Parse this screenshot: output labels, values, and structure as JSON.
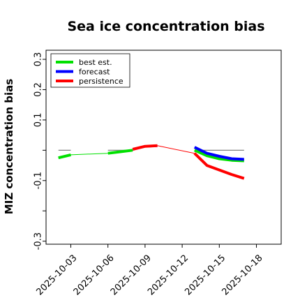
{
  "chart_data": {
    "type": "line",
    "title": "Sea ice concentration bias",
    "xlabel": "",
    "ylabel": "MIZ concentration bias",
    "ylim": [
      -0.31,
      0.33
    ],
    "xlim": [
      "2025-10-01",
      "2025-10-20"
    ],
    "x_ticks": [
      "2025-10-03",
      "2025-10-06",
      "2025-10-09",
      "2025-10-12",
      "2025-10-15",
      "2025-10-18"
    ],
    "highlight_tick": "2025-10-09",
    "highlight_color": "#2e8b2e",
    "y_ticks": [
      {
        "value": 0.3,
        "label": "0.3"
      },
      {
        "value": 0.2,
        "label": "0.2"
      },
      {
        "value": 0.1,
        "label": "0.1"
      },
      {
        "value": 0.0,
        "label": ""
      },
      {
        "value": -0.1,
        "label": "-0.1"
      },
      {
        "value": -0.2,
        "label": ""
      },
      {
        "value": -0.3,
        "label": "-0.3"
      }
    ],
    "zero_line": {
      "color": "#808080",
      "segments": [
        [
          "2025-10-02",
          "2025-10-03"
        ],
        [
          "2025-10-06",
          "2025-10-08"
        ],
        [
          "2025-10-13",
          "2025-10-17"
        ]
      ]
    },
    "legend": {
      "position": "top-left",
      "entries": [
        {
          "label": "best est.",
          "color": "#00e000"
        },
        {
          "label": "forecast",
          "color": "#0000ff"
        },
        {
          "label": "persistence",
          "color": "#ff0000"
        }
      ]
    },
    "series": [
      {
        "name": "best est.",
        "color": "#00e000",
        "segments": [
          {
            "x": [
              "2025-10-02",
              "2025-10-03",
              "2025-10-06",
              "2025-10-07",
              "2025-10-08"
            ],
            "y": [
              -0.025,
              -0.015,
              -0.01,
              -0.005,
              0.0
            ],
            "width": "thin"
          },
          {
            "x": [
              "2025-10-02",
              "2025-10-03"
            ],
            "y": [
              -0.025,
              -0.015
            ],
            "width": "thick"
          },
          {
            "x": [
              "2025-10-06",
              "2025-10-07",
              "2025-10-08"
            ],
            "y": [
              -0.01,
              -0.005,
              0.0
            ],
            "width": "thick"
          },
          {
            "x": [
              "2025-10-13",
              "2025-10-14",
              "2025-10-15",
              "2025-10-16",
              "2025-10-17"
            ],
            "y": [
              0.0,
              -0.018,
              -0.028,
              -0.033,
              -0.035
            ],
            "width": "thick"
          }
        ]
      },
      {
        "name": "forecast",
        "color": "#0000ff",
        "segments": [
          {
            "x": [
              "2025-10-08",
              "2025-10-09",
              "2025-10-10"
            ],
            "y": [
              0.0,
              0.01,
              0.012
            ],
            "width": "thin"
          },
          {
            "x": [
              "2025-10-13",
              "2025-10-14",
              "2025-10-15",
              "2025-10-16",
              "2025-10-17"
            ],
            "y": [
              0.01,
              -0.01,
              -0.02,
              -0.028,
              -0.03
            ],
            "width": "thick"
          }
        ]
      },
      {
        "name": "persistence",
        "color": "#ff0000",
        "segments": [
          {
            "x": [
              "2025-10-08",
              "2025-10-09",
              "2025-10-10"
            ],
            "y": [
              0.003,
              0.013,
              0.015
            ],
            "width": "thick"
          },
          {
            "x": [
              "2025-10-10",
              "2025-10-13"
            ],
            "y": [
              0.015,
              -0.01
            ],
            "width": "thin"
          },
          {
            "x": [
              "2025-10-13",
              "2025-10-14",
              "2025-10-15",
              "2025-10-16",
              "2025-10-17"
            ],
            "y": [
              -0.01,
              -0.05,
              -0.065,
              -0.08,
              -0.093
            ],
            "width": "thick"
          }
        ]
      }
    ]
  }
}
